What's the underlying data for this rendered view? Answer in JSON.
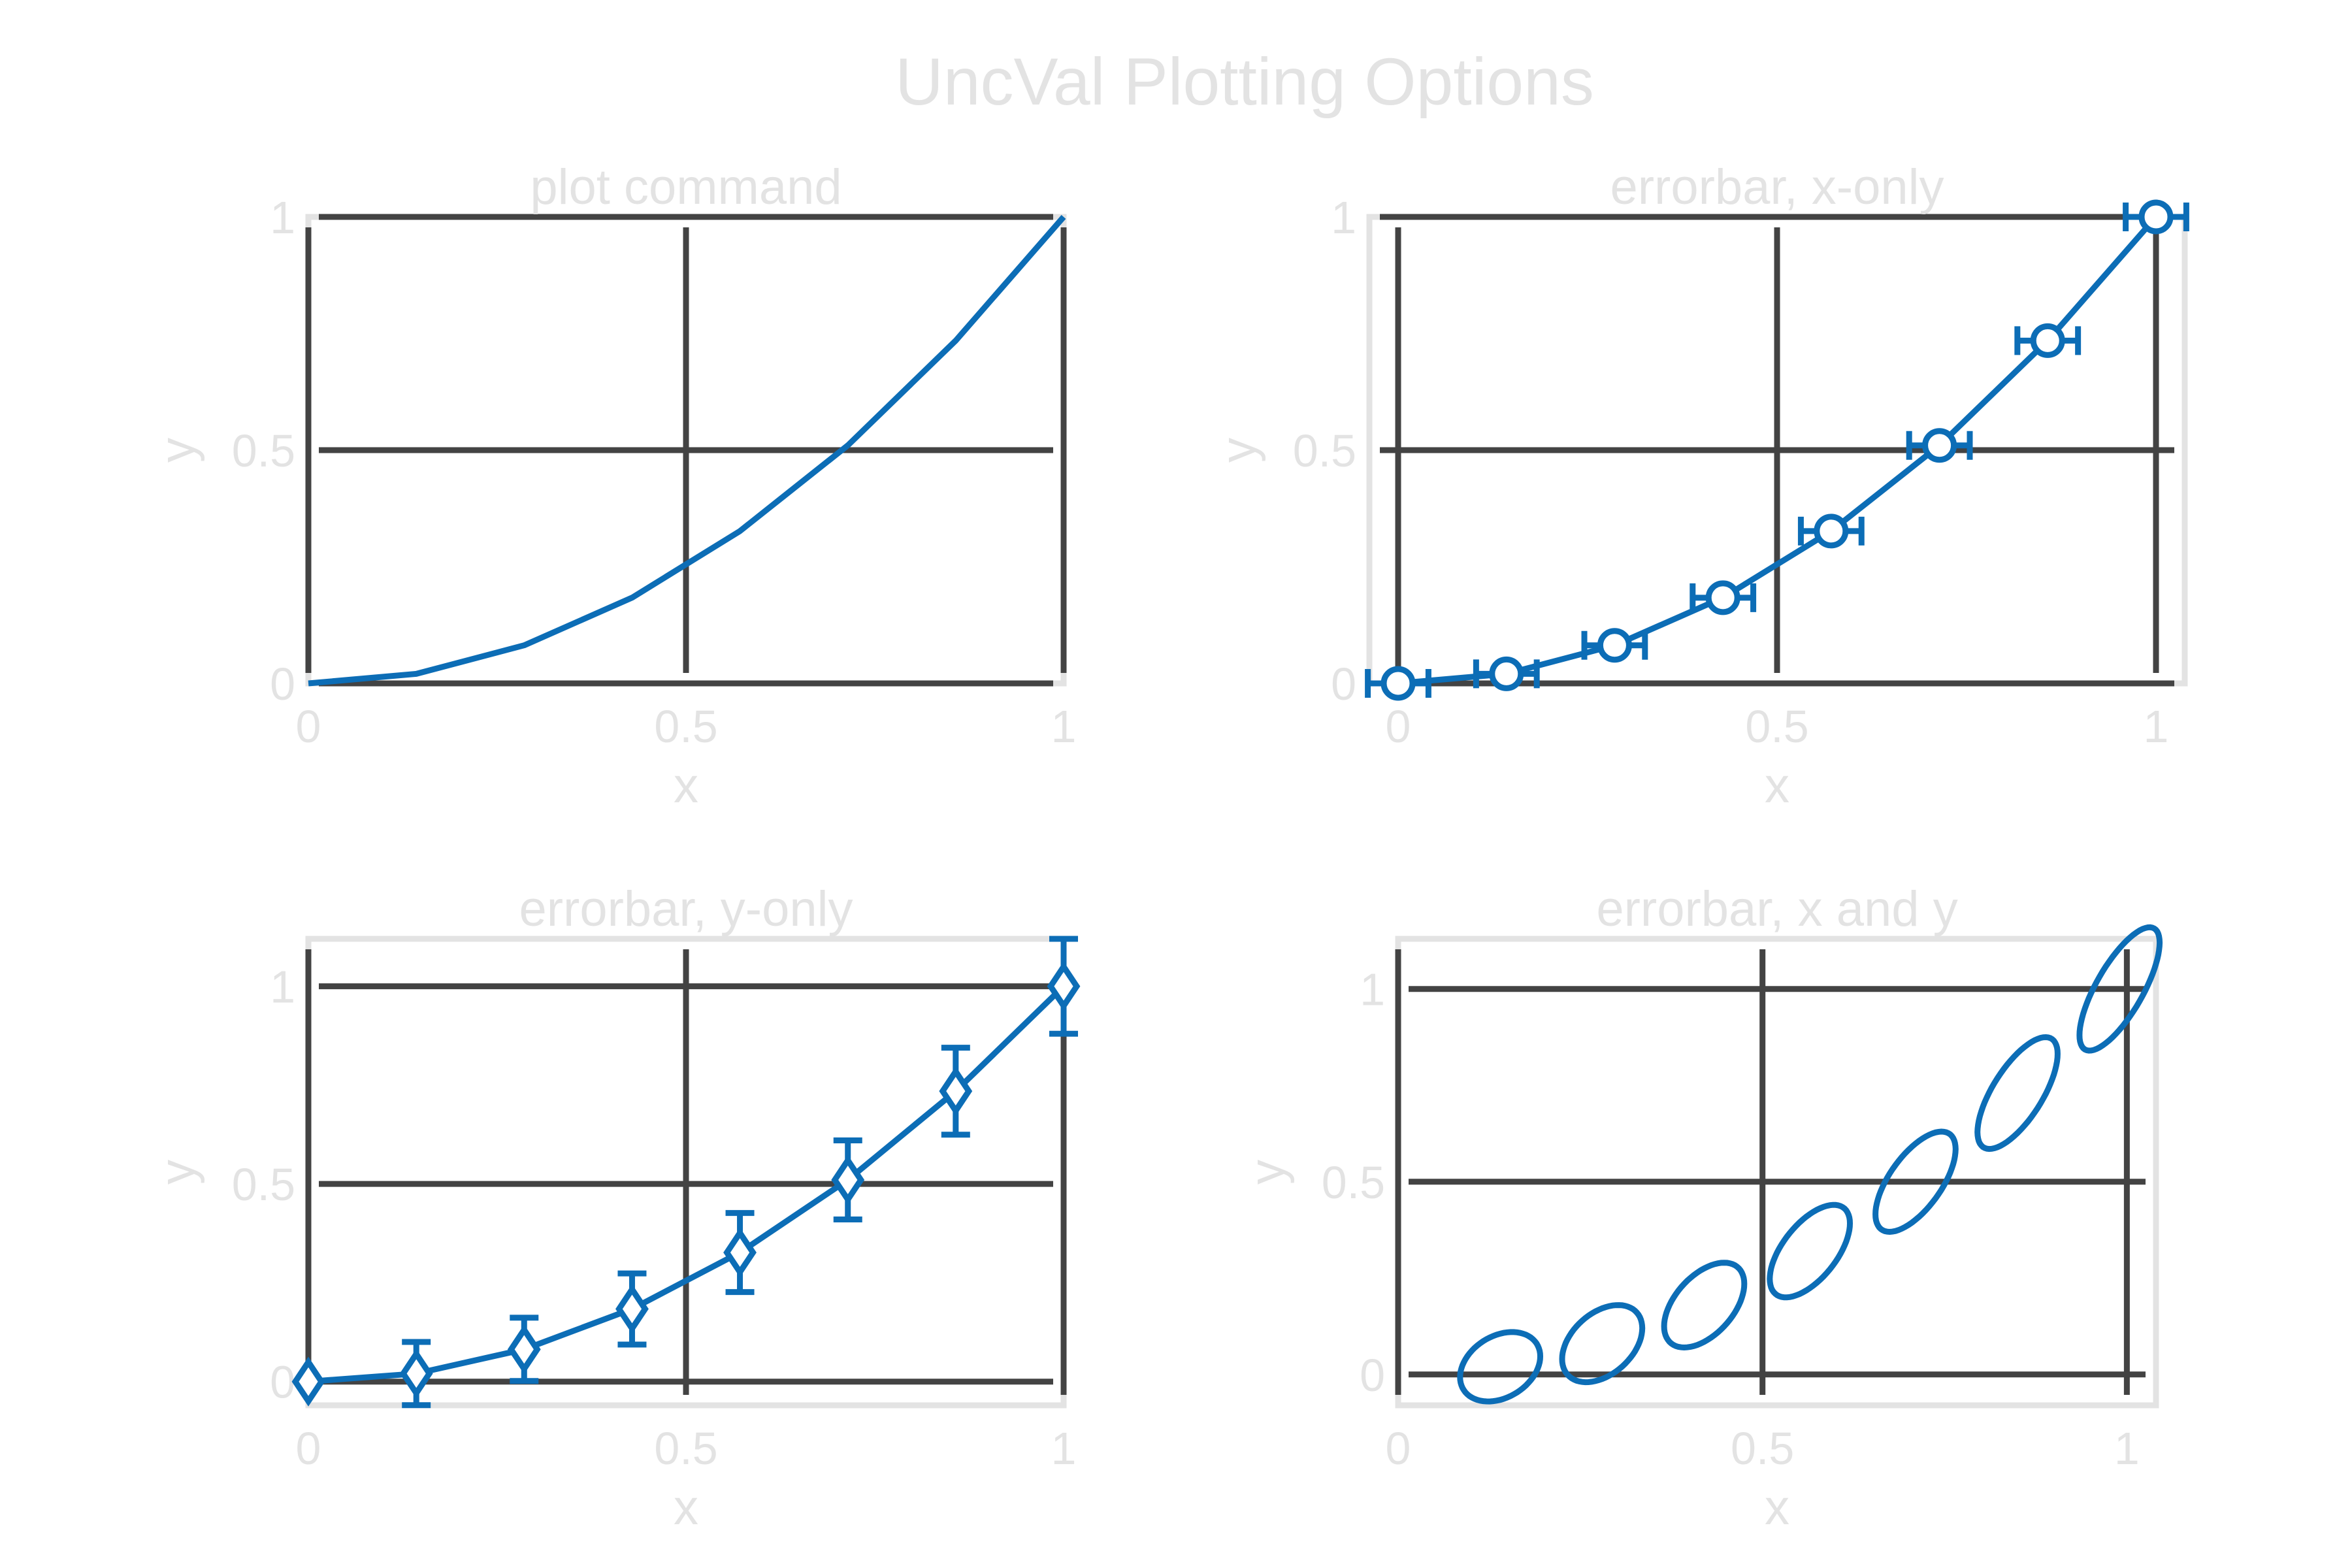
{
  "figure": {
    "title": "UncVal Plotting Options"
  },
  "chart_data": [
    {
      "type": "line",
      "title": "plot command",
      "xlabel": "x",
      "ylabel": "y",
      "xlim": [
        0,
        1
      ],
      "ylim": [
        0,
        1
      ],
      "xticks": [
        "0",
        "0.5",
        "1"
      ],
      "yticks": [
        "0",
        "0.5",
        "1"
      ],
      "grid": true,
      "series": [
        {
          "x": [
            0,
            0.1429,
            0.2857,
            0.4286,
            0.5714,
            0.7143,
            0.8571,
            1
          ],
          "y": [
            0,
            0.0204,
            0.0816,
            0.1837,
            0.3265,
            0.5102,
            0.7347,
            1
          ]
        }
      ]
    },
    {
      "type": "line",
      "title": "errorbar, x-only",
      "xlabel": "x",
      "ylabel": "y",
      "xlim": [
        0,
        1
      ],
      "ylim": [
        0,
        1
      ],
      "xticks": [
        "0",
        "0.5",
        "1"
      ],
      "yticks": [
        "0",
        "0.5",
        "1"
      ],
      "grid": true,
      "marker": "circle",
      "series": [
        {
          "x": [
            0,
            0.1429,
            0.2857,
            0.4286,
            0.5714,
            0.7143,
            0.8571,
            1
          ],
          "y": [
            0,
            0.0204,
            0.0816,
            0.1837,
            0.3265,
            0.5102,
            0.7347,
            1
          ],
          "xerr": [
            0.04,
            0.04,
            0.04,
            0.04,
            0.04,
            0.04,
            0.04,
            0.04
          ]
        }
      ]
    },
    {
      "type": "line",
      "title": "errorbar, y-only",
      "xlabel": "x",
      "ylabel": "y",
      "xlim": [
        0,
        1
      ],
      "ylim": [
        -0.06,
        1.12
      ],
      "xticks": [
        "0",
        "0.5",
        "1"
      ],
      "yticks": [
        "0",
        "0.5",
        "1"
      ],
      "grid": true,
      "marker": "diamond",
      "series": [
        {
          "x": [
            0,
            0.1429,
            0.2857,
            0.4286,
            0.5714,
            0.7143,
            0.8571,
            1
          ],
          "y": [
            0,
            0.0204,
            0.0816,
            0.1837,
            0.3265,
            0.5102,
            0.7347,
            1
          ],
          "yerr": [
            0,
            0.08,
            0.08,
            0.09,
            0.1,
            0.1,
            0.11,
            0.12
          ]
        }
      ]
    },
    {
      "type": "scatter",
      "title": "errorbar, x and y",
      "xlabel": "x",
      "ylabel": "y",
      "xlim": [
        0,
        1.04
      ],
      "ylim": [
        -0.08,
        1.13
      ],
      "xticks": [
        "0",
        "0.5",
        "1"
      ],
      "yticks": [
        "0",
        "0.5",
        "1"
      ],
      "grid": true,
      "marker": "ellipse",
      "series": [
        {
          "x": [
            0.14,
            0.28,
            0.42,
            0.565,
            0.71,
            0.85,
            0.99
          ],
          "y": [
            0.02,
            0.08,
            0.18,
            0.32,
            0.5,
            0.73,
            1.0
          ],
          "x_unc": [
            0.055,
            0.055,
            0.055,
            0.055,
            0.055,
            0.055,
            0.055
          ],
          "y_unc": [
            0.09,
            0.1,
            0.11,
            0.12,
            0.13,
            0.145,
            0.16
          ],
          "correlation": [
            0.3,
            0.4,
            0.5,
            0.6,
            0.65,
            0.7,
            0.75
          ]
        }
      ]
    }
  ]
}
